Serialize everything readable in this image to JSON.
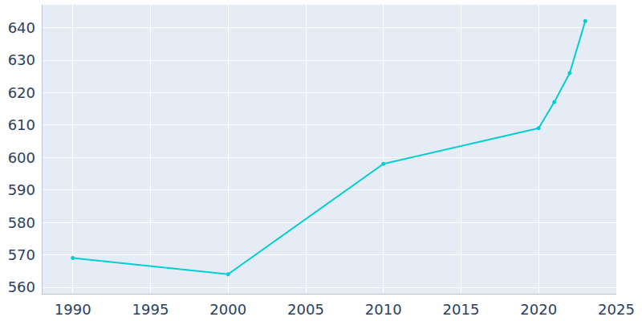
{
  "chart_data": {
    "type": "line",
    "x": [
      1990,
      2000,
      2010,
      2020,
      2021,
      2022,
      2023
    ],
    "values": [
      569,
      564,
      598,
      609,
      617,
      626,
      642
    ],
    "color": "#00ced1",
    "marker": "circle",
    "xlim": [
      1988,
      2025
    ],
    "xticks": [
      1990,
      1995,
      2000,
      2005,
      2010,
      2015,
      2020,
      2025
    ],
    "ylim": [
      558,
      647
    ],
    "yticks": [
      560,
      570,
      580,
      590,
      600,
      610,
      620,
      630,
      640
    ],
    "grid": true
  }
}
